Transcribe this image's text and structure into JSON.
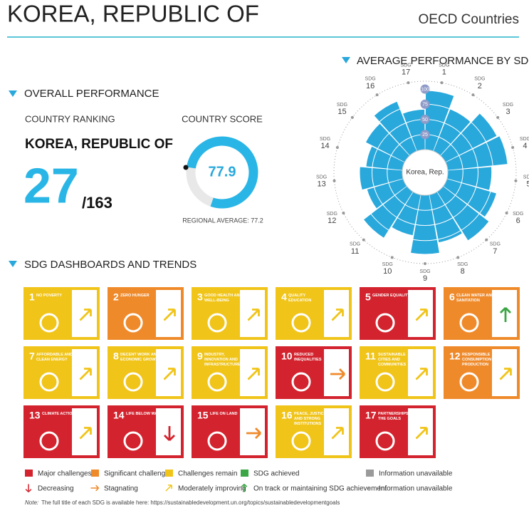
{
  "header": {
    "title": "KOREA, REPUBLIC OF",
    "region": "OECD Countries"
  },
  "overall": {
    "heading": "OVERALL PERFORMANCE",
    "ranking_label": "COUNTRY RANKING",
    "country": "KOREA, REPUBLIC OF",
    "rank": 27,
    "rank_total": "/163",
    "score_label": "COUNTRY SCORE",
    "score": 77.9,
    "score_lim": [
      0,
      100
    ],
    "regional_average": "REGIONAL AVERAGE: 77.2"
  },
  "chart_data": {
    "type": "polar-bar",
    "title": "AVERAGE PERFORMANCE BY SDG",
    "center_label": "Korea, Rep.",
    "category_prefix": "SDG",
    "categories": [
      "1",
      "2",
      "3",
      "4",
      "5",
      "6",
      "7",
      "8",
      "9",
      "10",
      "11",
      "12",
      "13",
      "14",
      "15",
      "16",
      "17"
    ],
    "values": [
      97,
      75,
      95,
      99,
      72,
      85,
      95,
      80,
      97,
      68,
      90,
      62,
      70,
      60,
      72,
      88,
      66
    ],
    "color": "#29a8dc",
    "ylim": [
      0,
      100
    ],
    "yticks": [
      25,
      50,
      75,
      100
    ]
  },
  "dashboard": {
    "heading": "SDG DASHBOARDS AND TRENDS",
    "tiles": [
      {
        "number": "1",
        "name": "NO POVERTY",
        "rating": "Challenges remain",
        "trend": "Moderately improving"
      },
      {
        "number": "2",
        "name": "ZERO HUNGER",
        "rating": "Significant challenges",
        "trend": "Moderately improving"
      },
      {
        "number": "3",
        "name": "GOOD HEALTH AND WELL-BEING",
        "rating": "Challenges remain",
        "trend": "Moderately improving"
      },
      {
        "number": "4",
        "name": "QUALITY EDUCATION",
        "rating": "Challenges remain",
        "trend": "Moderately improving"
      },
      {
        "number": "5",
        "name": "GENDER EQUALITY",
        "rating": "Major challenges",
        "trend": "Moderately improving"
      },
      {
        "number": "6",
        "name": "CLEAN WATER AND SANITATION",
        "rating": "Significant challenges",
        "trend": "On track or maintaining SDG achievement"
      },
      {
        "number": "7",
        "name": "AFFORDABLE AND CLEAN ENERGY",
        "rating": "Challenges remain",
        "trend": "Moderately improving"
      },
      {
        "number": "8",
        "name": "DECENT WORK AND ECONOMIC GROWTH",
        "rating": "Challenges remain",
        "trend": "Moderately improving"
      },
      {
        "number": "9",
        "name": "INDUSTRY, INNOVATION AND INFRASTRUCTURE",
        "rating": "Challenges remain",
        "trend": "Moderately improving"
      },
      {
        "number": "10",
        "name": "REDUCED INEQUALITIES",
        "rating": "Major challenges",
        "trend": "Stagnating"
      },
      {
        "number": "11",
        "name": "SUSTAINABLE CITIES AND COMMUNITIES",
        "rating": "Challenges remain",
        "trend": "Moderately improving"
      },
      {
        "number": "12",
        "name": "RESPONSIBLE CONSUMPTION AND PRODUCTION",
        "rating": "Significant challenges",
        "trend": "Moderately improving"
      },
      {
        "number": "13",
        "name": "CLIMATE ACTION",
        "rating": "Major challenges",
        "trend": "Moderately improving"
      },
      {
        "number": "14",
        "name": "LIFE BELOW WATER",
        "rating": "Major challenges",
        "trend": "Decreasing"
      },
      {
        "number": "15",
        "name": "LIFE ON LAND",
        "rating": "Major challenges",
        "trend": "Stagnating"
      },
      {
        "number": "16",
        "name": "PEACE, JUSTICE AND STRONG INSTITUTIONS",
        "rating": "Challenges remain",
        "trend": "Moderately improving"
      },
      {
        "number": "17",
        "name": "PARTNERSHIPS FOR THE GOALS",
        "rating": "Major challenges",
        "trend": "Moderately improving"
      }
    ]
  },
  "legend": {
    "ratings": [
      {
        "label": "Major challenges",
        "color": "#d3232e"
      },
      {
        "label": "Significant challenges",
        "color": "#ef8a2b"
      },
      {
        "label": "Challenges remain",
        "color": "#f0c419"
      },
      {
        "label": "SDG achieved",
        "color": "#3aa645"
      },
      {
        "label": "Information unavailable",
        "color": "#9a9a9a"
      }
    ],
    "trends": [
      {
        "label": "Decreasing",
        "color": "#d3232e"
      },
      {
        "label": "Stagnating",
        "color": "#ef8a2b"
      },
      {
        "label": "Moderately improving",
        "color": "#f0c419"
      },
      {
        "label": "On track or maintaining SDG achievement",
        "color": "#3aa645"
      },
      {
        "label": "Information unavailable",
        "color": "#9a9a9a"
      }
    ]
  },
  "note": {
    "label": "Note:",
    "text": "The full title of each SDG is available here: https://sustainabledevelopment.un.org/topics/sustainabledevelopmentgoals"
  }
}
